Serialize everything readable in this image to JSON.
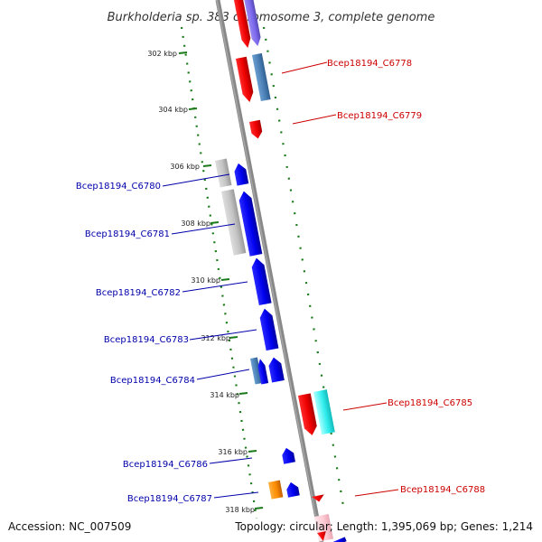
{
  "title": "Burkholderia sp. 383 chromosome 3, complete genome",
  "footer": {
    "accession": "Accession: NC_007509",
    "summary": "Topology: circular; Length: 1,395,069 bp; Genes: 1,214"
  },
  "colors": {
    "backbone": "#7f7f7f",
    "tick": "#1a7a1a",
    "label_forward": "#cc0000",
    "label_reverse": "#0000aa"
  },
  "ticks": [
    {
      "label": "302 kbp"
    },
    {
      "label": "304 kbp"
    },
    {
      "label": "306 kbp"
    },
    {
      "label": "308 kbp"
    },
    {
      "label": "310 kbp"
    },
    {
      "label": "312 kbp"
    },
    {
      "label": "314 kbp"
    },
    {
      "label": "316 kbp"
    },
    {
      "label": "318 kbp"
    }
  ],
  "gene_labels": [
    {
      "name": "Bcep18194_C6778",
      "strand": "forward"
    },
    {
      "name": "Bcep18194_C6779",
      "strand": "forward"
    },
    {
      "name": "Bcep18194_C6780",
      "strand": "reverse"
    },
    {
      "name": "Bcep18194_C6781",
      "strand": "reverse"
    },
    {
      "name": "Bcep18194_C6782",
      "strand": "reverse"
    },
    {
      "name": "Bcep18194_C6783",
      "strand": "reverse"
    },
    {
      "name": "Bcep18194_C6784",
      "strand": "reverse"
    },
    {
      "name": "Bcep18194_C6785",
      "strand": "forward"
    },
    {
      "name": "Bcep18194_C6786",
      "strand": "reverse"
    },
    {
      "name": "Bcep18194_C6787",
      "strand": "reverse"
    },
    {
      "name": "Bcep18194_C6788",
      "strand": "forward"
    }
  ]
}
